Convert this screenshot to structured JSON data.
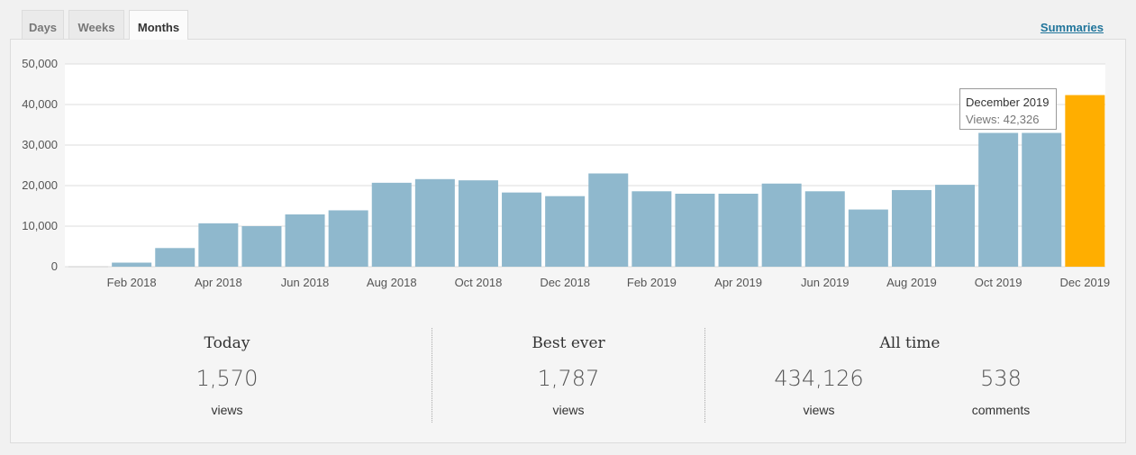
{
  "tabs": [
    {
      "label": "Days"
    },
    {
      "label": "Weeks"
    },
    {
      "label": "Months"
    }
  ],
  "summaries_link": "Summaries",
  "chart_data": {
    "type": "bar",
    "categories": [
      "Jan 2018",
      "Feb 2018",
      "Mar 2018",
      "Apr 2018",
      "May 2018",
      "Jun 2018",
      "Jul 2018",
      "Aug 2018",
      "Sep 2018",
      "Oct 2018",
      "Nov 2018",
      "Dec 2018",
      "Jan 2019",
      "Feb 2019",
      "Mar 2019",
      "Apr 2019",
      "May 2019",
      "Jun 2019",
      "Jul 2019",
      "Aug 2019",
      "Sep 2019",
      "Oct 2019",
      "Nov 2019",
      "Dec 2019"
    ],
    "values": [
      0,
      1000,
      4600,
      10700,
      10000,
      12900,
      13900,
      20700,
      21600,
      21300,
      18300,
      17400,
      23000,
      18600,
      18000,
      18000,
      20500,
      18600,
      14100,
      18900,
      20200,
      33000,
      33000,
      42326
    ],
    "tick_labels": [
      "Feb 2018",
      "Apr 2018",
      "Jun 2018",
      "Aug 2018",
      "Oct 2018",
      "Dec 2018",
      "Feb 2019",
      "Apr 2019",
      "Jun 2019",
      "Aug 2019",
      "Oct 2019",
      "Dec 2019"
    ],
    "y_ticks": [
      "0",
      "10,000",
      "20,000",
      "30,000",
      "40,000",
      "50,000"
    ],
    "ylim": [
      0,
      50000
    ],
    "grid": true,
    "bar_color": "#8fb8cd",
    "highlight_color": "#ffae00",
    "highlight_index": 23
  },
  "tooltip": {
    "title": "December 2019",
    "text": "Views: 42,326"
  },
  "stats": {
    "today": {
      "title": "Today",
      "value": "1,570",
      "unit": "views"
    },
    "best_ever": {
      "title": "Best ever",
      "value": "1,787",
      "unit": "views"
    },
    "all_time": {
      "title": "All time",
      "views_value": "434,126",
      "views_unit": "views",
      "comments_value": "538",
      "comments_unit": "comments"
    }
  }
}
